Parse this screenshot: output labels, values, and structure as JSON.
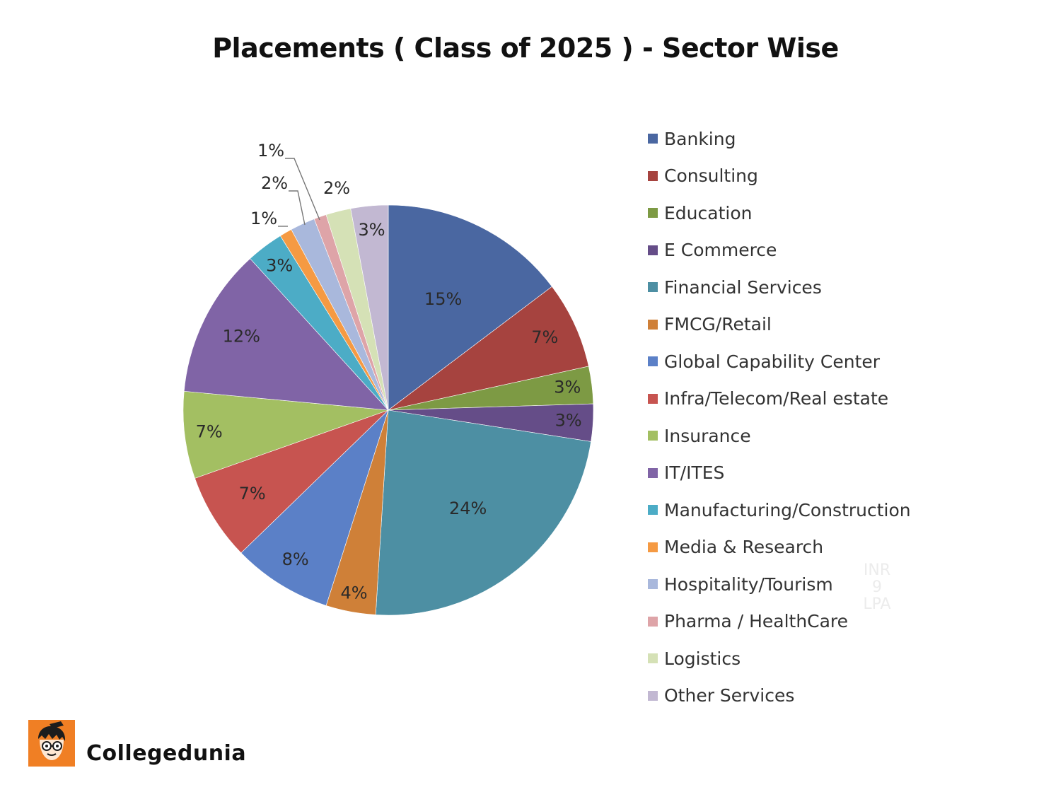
{
  "chart_data": {
    "type": "pie",
    "title": "Placements ( Class of 2025 ) - Sector Wise",
    "legend_position": "right",
    "slices": [
      {
        "label": "Banking",
        "value": 15,
        "value_label": "15%",
        "color": "#4a67a1"
      },
      {
        "label": "Consulting",
        "value": 7,
        "value_label": "7%",
        "color": "#a6433f"
      },
      {
        "label": "Education",
        "value": 3,
        "value_label": "3%",
        "color": "#7d9a44"
      },
      {
        "label": "E Commerce",
        "value": 3,
        "value_label": "3%",
        "color": "#654d88"
      },
      {
        "label": "Financial Services",
        "value": 24,
        "value_label": "24%",
        "color": "#4d8fa3"
      },
      {
        "label": "FMCG/Retail",
        "value": 4,
        "value_label": "4%",
        "color": "#cf8038"
      },
      {
        "label": "Global Capability Center",
        "value": 8,
        "value_label": "8%",
        "color": "#5b80c7"
      },
      {
        "label": "Infra/Telecom/Real estate",
        "value": 7,
        "value_label": "7%",
        "color": "#c75450"
      },
      {
        "label": "Insurance",
        "value": 7,
        "value_label": "7%",
        "color": "#a3bf62"
      },
      {
        "label": "IT/ITES",
        "value": 12,
        "value_label": "12%",
        "color": "#8064a6"
      },
      {
        "label": "Manufacturing/Construction",
        "value": 3,
        "value_label": "3%",
        "color": "#4cacc6"
      },
      {
        "label": "Media & Research",
        "value": 1,
        "value_label": "1%",
        "color": "#f59a43"
      },
      {
        "label": "Hospitality/Tourism",
        "value": 2,
        "value_label": "2%",
        "color": "#a9b8dc"
      },
      {
        "label": "Pharma / HealthCare",
        "value": 1,
        "value_label": "1%",
        "color": "#dea4a8"
      },
      {
        "label": "Logistics",
        "value": 2,
        "value_label": "2%",
        "color": "#d5e1b6"
      },
      {
        "label": "Other Services",
        "value": 3,
        "value_label": "3%",
        "color": "#c2b8d2"
      }
    ]
  },
  "watermark": {
    "line1": "INR",
    "line2": "9",
    "line3": "LPA"
  },
  "brand": {
    "name": "Collegedunia",
    "accent_color": "#f07f24"
  }
}
